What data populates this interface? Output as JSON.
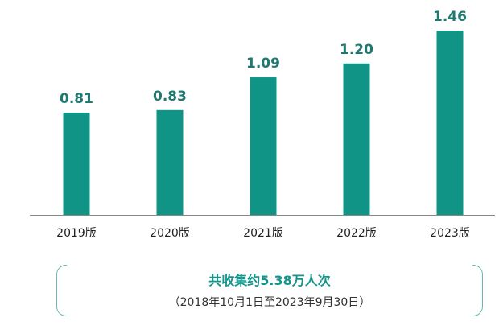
{
  "colors": {
    "bar": "#0f9485",
    "value_label": "#1e7a70",
    "axis": "#888888",
    "callout": "#12958a"
  },
  "chart_data": {
    "type": "bar",
    "categories": [
      "2019版",
      "2020版",
      "2021版",
      "2022版",
      "2023版"
    ],
    "values": [
      0.81,
      0.83,
      1.09,
      1.2,
      1.46
    ],
    "value_labels": [
      "0.81",
      "0.83",
      "1.09",
      "1.20",
      "1.46"
    ],
    "title": "",
    "xlabel": "",
    "ylabel": "",
    "ylim": [
      0,
      1.46
    ],
    "grid": false,
    "legend": "none"
  },
  "callout": {
    "title": "共收集约5.38万人次",
    "subtitle": "（2018年10月1日至2023年9月30日）"
  }
}
